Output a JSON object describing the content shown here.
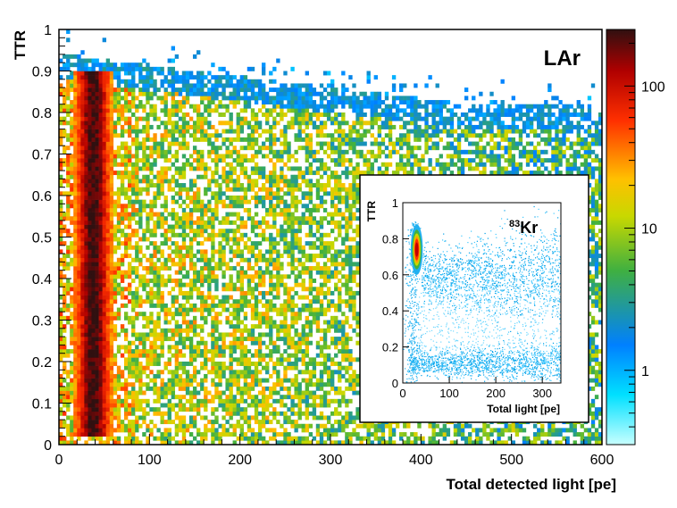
{
  "chart_data": [
    {
      "type": "heatmap",
      "title": "",
      "annotation": "LAr",
      "xlabel": "Total detected light [pe]",
      "ylabel": "TTR",
      "xlim": [
        0,
        600
      ],
      "ylim": [
        0,
        1
      ],
      "x_ticks": [
        "0",
        "100",
        "200",
        "300",
        "400",
        "500",
        "600"
      ],
      "y_ticks": [
        "0",
        "0.1",
        "0.2",
        "0.3",
        "0.4",
        "0.5",
        "0.6",
        "0.7",
        "0.8",
        "0.9",
        "1"
      ],
      "z_scale": "log",
      "z_range": [
        0.3,
        250
      ],
      "colorbar_ticks": [
        "1",
        "10",
        "100"
      ],
      "colormap": [
        "#c8ffff",
        "#00e0ff",
        "#0080ff",
        "#40b040",
        "#c8d800",
        "#ffc000",
        "#ff3000",
        "#b00000",
        "#301010"
      ],
      "features": [
        {
          "name": "main band",
          "x_center": 38,
          "x_width": 25,
          "y_range": [
            0.02,
            0.9
          ],
          "level": "high"
        },
        {
          "name": "upper band",
          "x_range": [
            80,
            600
          ],
          "y_from": [
            0.92,
            0.8
          ],
          "level": "low"
        },
        {
          "name": "background",
          "x_range": [
            60,
            600
          ],
          "y_range": [
            0.0,
            0.8
          ],
          "level": "medium"
        }
      ]
    },
    {
      "type": "scatter",
      "title": "",
      "annotation": "83Kr",
      "annotation_sup": "83",
      "annotation_main": "Kr",
      "xlabel": "Total light [pe]",
      "ylabel": "TTR",
      "xlim": [
        0,
        340
      ],
      "ylim": [
        0,
        1
      ],
      "x_ticks": [
        "0",
        "100",
        "200",
        "300"
      ],
      "y_ticks": [
        "0",
        "0.2",
        "0.4",
        "0.6",
        "0.8",
        "1"
      ],
      "features": [
        {
          "name": "83Kr peak",
          "x_center": 30,
          "y_center": 0.74,
          "level": "high"
        },
        {
          "name": "upper band",
          "x_range": [
            50,
            340
          ],
          "y_center": 0.6,
          "level": "low"
        },
        {
          "name": "lower band",
          "x_range": [
            20,
            340
          ],
          "y_center": 0.12,
          "level": "low"
        }
      ]
    }
  ]
}
